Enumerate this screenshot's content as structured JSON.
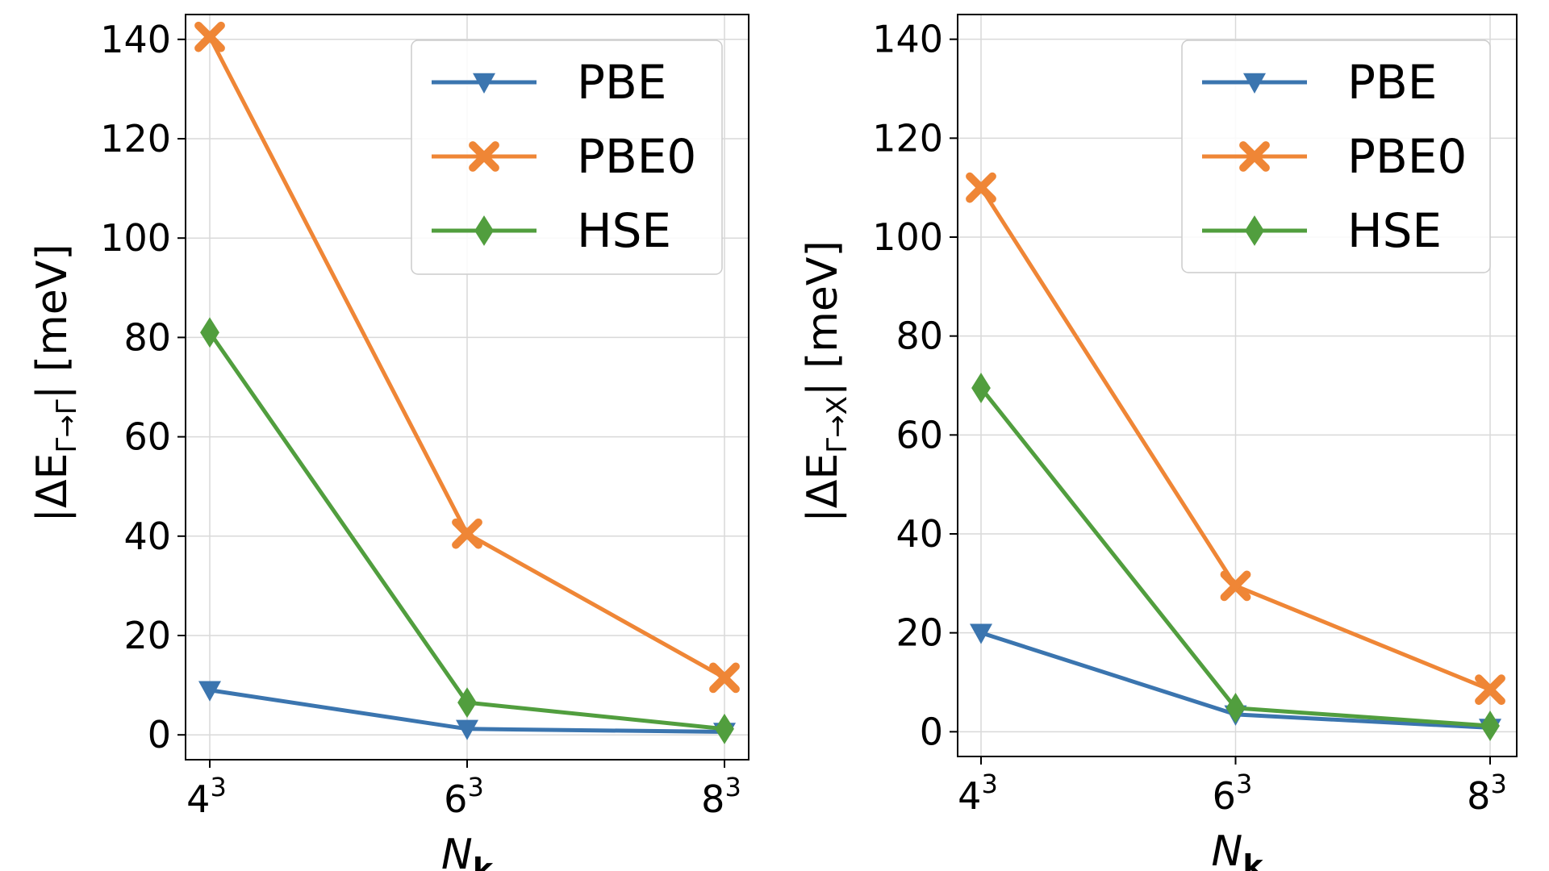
{
  "chart_data": [
    {
      "type": "line",
      "xlabel_main": "N",
      "xlabel_sub": "k",
      "ylabel_pre": "|ΔE",
      "ylabel_sub": "Γ→Γ",
      "ylabel_post": "| [meV]",
      "categories": [
        "4",
        "6",
        "8"
      ],
      "category_exponent": "3",
      "ylim": [
        -5,
        145
      ],
      "yticks": [
        "0",
        "20",
        "40",
        "60",
        "80",
        "100",
        "120",
        "140"
      ],
      "grid": true,
      "legend_position": "top-right",
      "series": [
        {
          "name": "PBE",
          "values": [
            9,
            1.2,
            0.6
          ],
          "color": "#3b75af",
          "marker": "triangle-down"
        },
        {
          "name": "PBE0",
          "values": [
            140.5,
            40.5,
            11.5
          ],
          "color": "#ef8636",
          "marker": "x"
        },
        {
          "name": "HSE",
          "values": [
            81,
            6.5,
            1.2
          ],
          "color": "#519e3e",
          "marker": "diamond"
        }
      ]
    },
    {
      "type": "line",
      "xlabel_main": "N",
      "xlabel_sub": "k",
      "ylabel_pre": "|ΔE",
      "ylabel_sub": "Γ→X",
      "ylabel_post": "| [meV]",
      "categories": [
        "4",
        "6",
        "8"
      ],
      "category_exponent": "3",
      "ylim": [
        -5,
        145
      ],
      "yticks": [
        "0",
        "20",
        "40",
        "60",
        "80",
        "100",
        "120",
        "140"
      ],
      "grid": true,
      "legend_position": "top-right",
      "series": [
        {
          "name": "PBE",
          "values": [
            20,
            3.5,
            0.8
          ],
          "color": "#3b75af",
          "marker": "triangle-down"
        },
        {
          "name": "PBE0",
          "values": [
            110,
            29.5,
            8.5
          ],
          "color": "#ef8636",
          "marker": "x"
        },
        {
          "name": "HSE",
          "values": [
            69.5,
            4.8,
            1.2
          ],
          "color": "#519e3e",
          "marker": "diamond"
        }
      ]
    }
  ]
}
